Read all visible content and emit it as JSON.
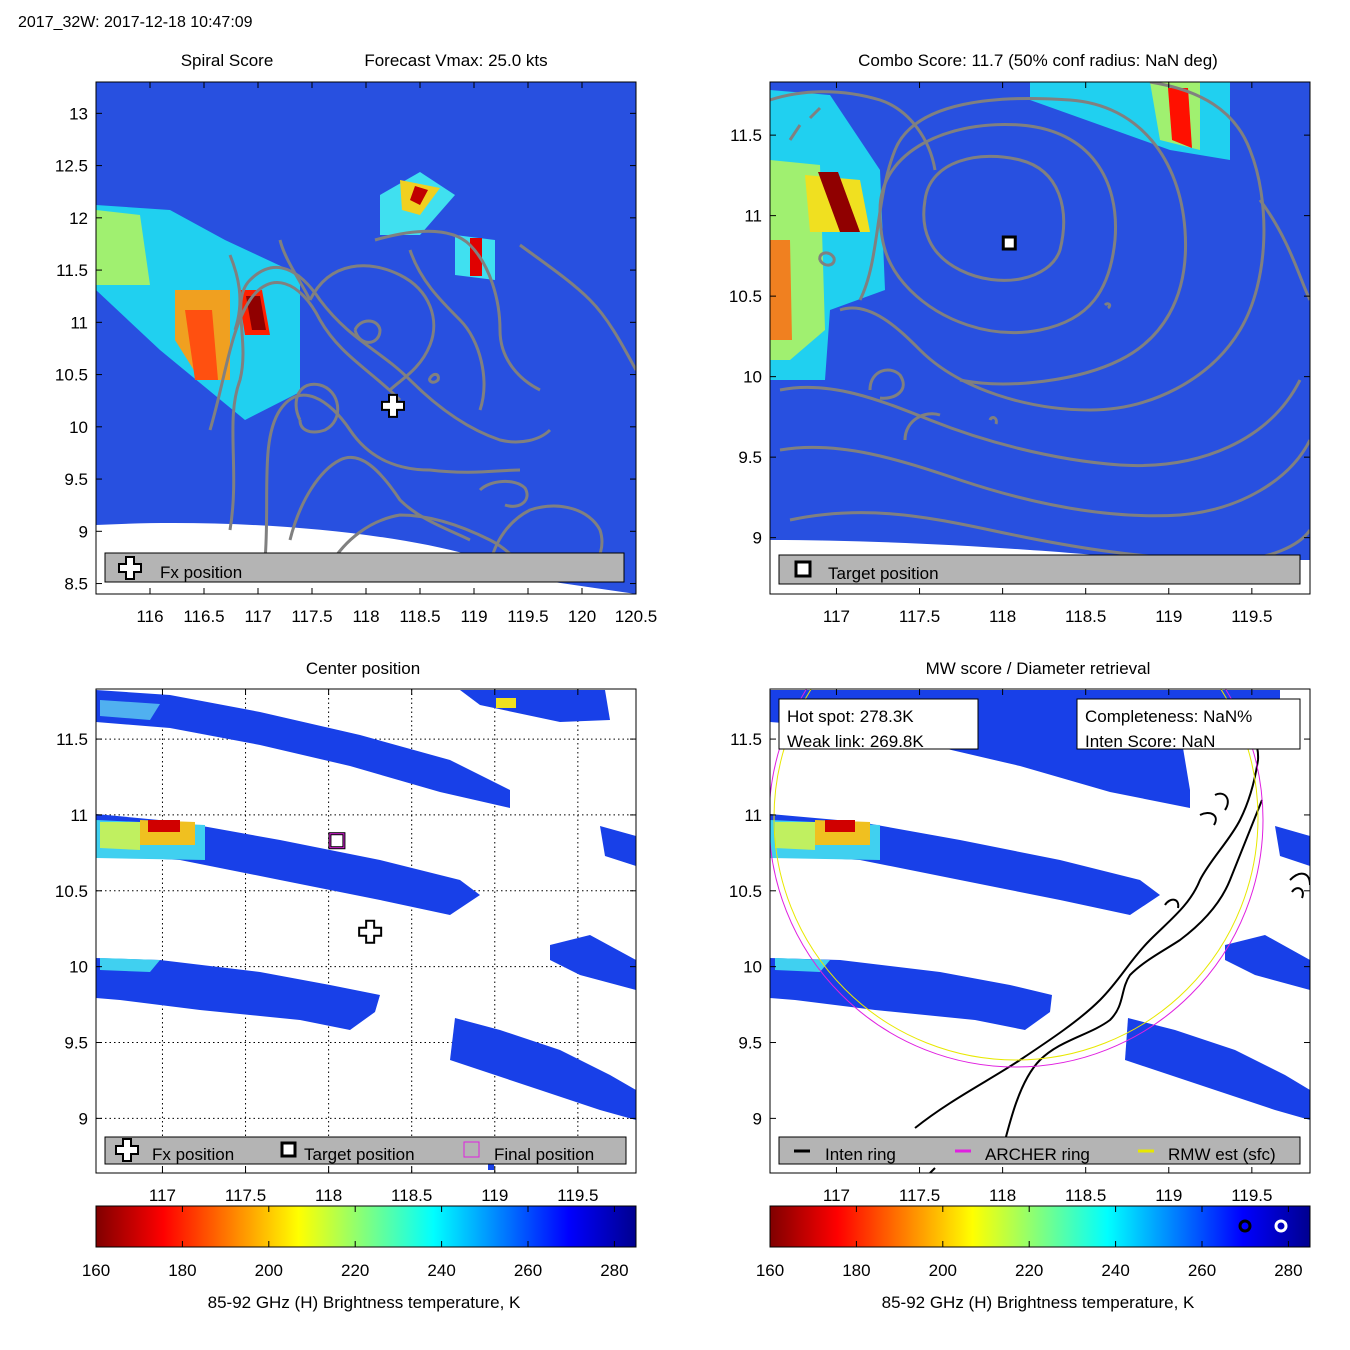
{
  "header": {
    "title": "2017_32W: 2017-12-18 10:47:09"
  },
  "colors": {
    "cold": "#00008f",
    "warm": "#800000",
    "contour": "#808080",
    "legend_bg": "#b4b4b4",
    "archer": "#e020e0",
    "rmw": "#e8e800"
  },
  "chart_data": [
    {
      "id": "spiral",
      "type": "heatmap",
      "title_left": "Spiral Score",
      "title_right": "Forecast Vmax: 25.0 kts",
      "xlim": [
        115.5,
        120.5
      ],
      "ylim": [
        8.4,
        13.3
      ],
      "xticks": [
        "116",
        "116.5",
        "117",
        "117.5",
        "118",
        "118.5",
        "119",
        "119.5",
        "120",
        "120.5"
      ],
      "xtick_values": [
        116,
        116.5,
        117,
        117.5,
        118,
        118.5,
        119,
        119.5,
        120,
        120.5
      ],
      "yticks": [
        "8.5",
        "9",
        "9.5",
        "10",
        "10.5",
        "11",
        "11.5",
        "12",
        "12.5",
        "13"
      ],
      "ytick_values": [
        8.5,
        9,
        9.5,
        10,
        10.5,
        11,
        11.5,
        12,
        12.5,
        13
      ],
      "legend": [
        "Fx position"
      ],
      "fx_position": [
        118.25,
        10.2
      ]
    },
    {
      "id": "combo",
      "type": "heatmap",
      "title": "Combo Score: 11.7  (50% conf radius: NaN deg)",
      "xlim": [
        116.6,
        119.85
      ],
      "ylim": [
        8.65,
        11.83
      ],
      "xticks": [
        "117",
        "117.5",
        "118",
        "118.5",
        "119",
        "119.5"
      ],
      "xtick_values": [
        117,
        117.5,
        118,
        118.5,
        119,
        119.5
      ],
      "yticks": [
        "9",
        "9.5",
        "10",
        "10.5",
        "11",
        "11.5"
      ],
      "ytick_values": [
        9,
        9.5,
        10,
        10.5,
        11,
        11.5
      ],
      "legend": [
        "Target position"
      ],
      "target_position": [
        118.04,
        10.83
      ]
    },
    {
      "id": "center",
      "type": "heatmap",
      "title": "Center position",
      "xlim": [
        116.6,
        119.85
      ],
      "ylim": [
        8.64,
        11.83
      ],
      "xticks": [
        "117",
        "117.5",
        "118",
        "118.5",
        "119",
        "119.5"
      ],
      "xtick_values": [
        117,
        117.5,
        118,
        118.5,
        119,
        119.5
      ],
      "yticks": [
        "9",
        "9.5",
        "10",
        "10.5",
        "11",
        "11.5"
      ],
      "ytick_values": [
        9,
        9.5,
        10,
        10.5,
        11,
        11.5
      ],
      "grid": true,
      "legend": [
        "Fx position",
        "Target position",
        "Final position"
      ],
      "fx_position": [
        118.25,
        10.23
      ],
      "target_position": [
        118.05,
        10.83
      ],
      "final_position": [
        118.05,
        10.83
      ]
    },
    {
      "id": "mw",
      "type": "heatmap",
      "title": "MW score / Diameter retrieval",
      "xlim": [
        116.6,
        119.85
      ],
      "ylim": [
        8.64,
        11.83
      ],
      "xticks": [
        "117",
        "117.5",
        "118",
        "118.5",
        "119",
        "119.5"
      ],
      "xtick_values": [
        117,
        117.5,
        118,
        118.5,
        119,
        119.5
      ],
      "yticks": [
        "9",
        "9.5",
        "10",
        "10.5",
        "11",
        "11.5"
      ],
      "ytick_values": [
        9,
        9.5,
        10,
        10.5,
        11,
        11.5
      ],
      "info_left": [
        "Hot spot: 278.3K",
        "Weak link: 269.8K"
      ],
      "info_right": [
        "Completeness: NaN%",
        "Inten Score: NaN"
      ],
      "legend": [
        "Inten ring",
        "ARCHER ring",
        "RMW est (sfc)"
      ]
    }
  ],
  "colorbar": {
    "min": 160,
    "max": 285,
    "ticks": [
      "160",
      "180",
      "200",
      "220",
      "240",
      "260",
      "280"
    ],
    "tick_values": [
      160,
      180,
      200,
      220,
      240,
      260,
      280
    ],
    "label": "85-92 GHz (H) Brightness temperature, K"
  }
}
